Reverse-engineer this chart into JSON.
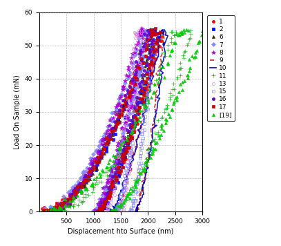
{
  "xlabel": "Displacement hto Surface (nm)",
  "ylabel": "Load On Sample (mN)",
  "xlim": [
    0,
    3000
  ],
  "ylim": [
    0,
    60
  ],
  "xticks": [
    500,
    1000,
    1500,
    2000,
    2500,
    3000
  ],
  "yticks": [
    0,
    10,
    20,
    30,
    40,
    50,
    60
  ],
  "background_color": "#ffffff",
  "grid_color": "#888888",
  "f_max": 54,
  "series": [
    {
      "label": "1",
      "color": "#ff0000",
      "marker": "o",
      "filled": true,
      "ms": 3,
      "linestyle": "none",
      "x_start": 50,
      "x_peak": 2050,
      "x_end": 2250,
      "power": 1.8
    },
    {
      "label": "2",
      "color": "#0000ff",
      "marker": "s",
      "filled": true,
      "ms": 3,
      "linestyle": "none",
      "x_start": 100,
      "x_peak": 2100,
      "x_end": 2180,
      "power": 1.8
    },
    {
      "label": "6",
      "color": "#402000",
      "marker": "^",
      "filled": true,
      "ms": 3,
      "linestyle": "none",
      "x_start": 150,
      "x_peak": 1980,
      "x_end": 2100,
      "power": 1.9
    },
    {
      "label": "7",
      "color": "#8888ff",
      "marker": "D",
      "filled": true,
      "ms": 3,
      "linestyle": "none",
      "x_start": 80,
      "x_peak": 1920,
      "x_end": 2000,
      "power": 1.7
    },
    {
      "label": "8",
      "color": "#aa00cc",
      "marker": "*",
      "filled": true,
      "ms": 4,
      "linestyle": "none",
      "x_start": 200,
      "x_peak": 1850,
      "x_end": 1950,
      "power": 1.8
    },
    {
      "label": "9",
      "color": "#cc2222",
      "marker": "none",
      "filled": true,
      "ms": 3,
      "linestyle": "--",
      "x_start": 1350,
      "x_peak": 2200,
      "x_end": 2300,
      "power": 1.5
    },
    {
      "label": "10",
      "color": "#0000bb",
      "marker": "none",
      "filled": true,
      "ms": 3,
      "linestyle": "-",
      "x_start": 1300,
      "x_peak": 2250,
      "x_end": 2350,
      "power": 1.5
    },
    {
      "label": "11",
      "color": "#00bb00",
      "marker": "+",
      "filled": true,
      "ms": 4,
      "linestyle": "none",
      "x_start": 300,
      "x_peak": 2450,
      "x_end": 2800,
      "power": 1.8
    },
    {
      "label": "13",
      "color": "#dd88dd",
      "marker": "o",
      "filled": false,
      "ms": 3,
      "linestyle": "none",
      "x_start": 1200,
      "x_peak": 1780,
      "x_end": 1900,
      "power": 1.6
    },
    {
      "label": "15",
      "color": "#8888ff",
      "marker": "s",
      "filled": false,
      "ms": 3,
      "linestyle": "none",
      "x_start": 1400,
      "x_peak": 1950,
      "x_end": 2100,
      "power": 1.5
    },
    {
      "label": "16",
      "color": "#6600cc",
      "marker": "o",
      "filled": true,
      "ms": 3,
      "linestyle": "none",
      "x_start": 100,
      "x_peak": 2000,
      "x_end": 2120,
      "power": 1.8
    },
    {
      "label": "17",
      "color": "#cc0000",
      "marker": "s",
      "filled": true,
      "ms": 3,
      "linestyle": "none",
      "x_start": 80,
      "x_peak": 2080,
      "x_end": 2200,
      "power": 1.8
    },
    {
      "label": "[19]",
      "color": "#00cc00",
      "marker": "^",
      "filled": true,
      "ms": 3,
      "linestyle": "none",
      "x_start": 50,
      "x_peak": 2600,
      "x_end": 3000,
      "power": 1.8
    }
  ]
}
